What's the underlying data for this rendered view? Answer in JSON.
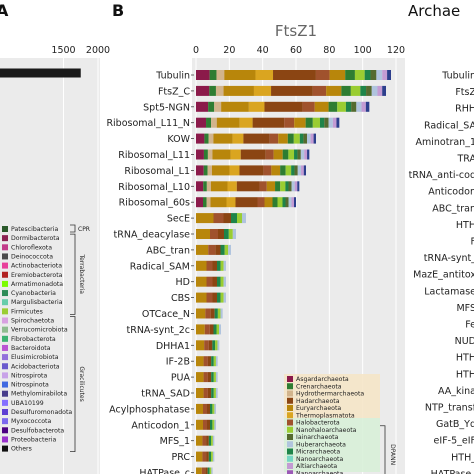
{
  "chart_data": [
    {
      "panel": "A",
      "type": "bar",
      "orientation": "horizontal",
      "x_ticks": [
        1500,
        2000
      ],
      "xlim": [
        0,
        2000
      ],
      "bars": [
        {
          "segments": [
            {
              "value": 240,
              "color": "#b36be0"
            },
            {
              "value": 110,
              "color": "#8a2be2"
            },
            {
              "value": 1400,
              "color": "#1a1a1a"
            }
          ]
        },
        {
          "segments": [
            {
              "value": 60,
              "color": "#b36be0"
            },
            {
              "value": 400,
              "color": "#4b2fd6"
            }
          ]
        },
        {
          "segments": [
            {
              "value": 70,
              "color": "#2a2a2a"
            }
          ]
        },
        {
          "segments": [
            {
              "value": 55,
              "color": "#2a2a2a"
            }
          ]
        },
        {
          "segments": [
            {
              "value": 40,
              "color": "#2a2a2a"
            }
          ]
        }
      ],
      "legend": {
        "items": [
          {
            "name": "Patescibacteria",
            "color": "#2b5a2b"
          },
          {
            "name": "Dormibacterota",
            "color": "#8b2252"
          },
          {
            "name": "Chloroflexota",
            "color": "#c23b8a"
          },
          {
            "name": "Deinococcota",
            "color": "#4a4a4a"
          },
          {
            "name": "Actinobacteriota",
            "color": "#e8409a"
          },
          {
            "name": "Eremiobacterota",
            "color": "#b22222"
          },
          {
            "name": "Armatimonadota",
            "color": "#7cfc00"
          },
          {
            "name": "Cyanobacteria",
            "color": "#2e8b57"
          },
          {
            "name": "Margulisbacteria",
            "color": "#66cdaa"
          },
          {
            "name": "Firmicutes",
            "color": "#9acd32"
          },
          {
            "name": "Spirochaetota",
            "color": "#d8a0e0"
          },
          {
            "name": "Verrucomicrobiota",
            "color": "#8fbc8f"
          },
          {
            "name": "Fibrobacterota",
            "color": "#3cb371"
          },
          {
            "name": "Bacteroidota",
            "color": "#ba55d3"
          },
          {
            "name": "Elusimicrobiota",
            "color": "#9370db"
          },
          {
            "name": "Acidobacteriota",
            "color": "#6a5acd"
          },
          {
            "name": "Nitrospirota",
            "color": "#c8a2e8"
          },
          {
            "name": "Nitrospinota",
            "color": "#4169e1"
          },
          {
            "name": "Methylomirabilota",
            "color": "#483d8b"
          },
          {
            "name": "UBA10199",
            "color": "#8470ff"
          },
          {
            "name": "Desulfuromonadota",
            "color": "#5d3fd3"
          },
          {
            "name": "Myxococcota",
            "color": "#7b68ee"
          },
          {
            "name": "Desulfobacterota",
            "color": "#4b0082"
          },
          {
            "name": "Proteobacteria",
            "color": "#9932cc"
          },
          {
            "name": "Others",
            "color": "#111111"
          }
        ],
        "groups": [
          "CPR",
          "Terrabacteria",
          "Gracilicutes"
        ]
      }
    },
    {
      "panel": "B",
      "type": "bar",
      "orientation": "horizontal",
      "title": "FtsZ1",
      "x_ticks": [
        0,
        20,
        40,
        60,
        80,
        100,
        120
      ],
      "xlim": [
        0,
        120
      ],
      "categories": [
        "Tubulin",
        "FtsZ_C",
        "Spt5-NGN",
        "Ribosomal_L11_N",
        "KOW",
        "Ribosomal_L11",
        "Ribosomal_L1",
        "Ribosomal_L10",
        "Ribosomal_60s",
        "SecE",
        "tRNA_deacylase",
        "ABC_tran",
        "Radical_SAM",
        "HD",
        "CBS",
        "OTCace_N",
        "tRNA-synt_2c",
        "DHHA1",
        "IF-2B",
        "PUA",
        "tRNA_SAD",
        "Acylphosphatase",
        "Anticodon_1",
        "MFS_1",
        "PRC",
        "HATPase_c"
      ],
      "totals": [
        117,
        114,
        104,
        86,
        72,
        68,
        66,
        62,
        60,
        30,
        24,
        21,
        18,
        18,
        18,
        16,
        15,
        14,
        13,
        13,
        13,
        12,
        12,
        11,
        11,
        10
      ],
      "legend": {
        "items": [
          {
            "name": "Asgardarchaeota",
            "color": "#8b1a4a"
          },
          {
            "name": "Crenarchaeota",
            "color": "#2e7d32"
          },
          {
            "name": "Hydrothermarchaeota",
            "color": "#d2b48c"
          },
          {
            "name": "Hadarchaeota",
            "color": "#8b4513"
          },
          {
            "name": "Euryarchaeota",
            "color": "#b8860b"
          },
          {
            "name": "Thermoplasmatota",
            "color": "#daa520"
          },
          {
            "name": "Halobacterota",
            "color": "#a0522d"
          },
          {
            "name": "Nanohaloarchaeota",
            "color": "#9acd32"
          },
          {
            "name": "Iainarchaeota",
            "color": "#556b2f"
          },
          {
            "name": "Huberarchaeota",
            "color": "#b0c4de"
          },
          {
            "name": "Micrarchaeota",
            "color": "#1e8449"
          },
          {
            "name": "Nanoarchaeota",
            "color": "#76d7c4"
          },
          {
            "name": "Altiarchaeota",
            "color": "#c39bd3"
          },
          {
            "name": "Nanoarchaeota",
            "color": "#9b59b6"
          },
          {
            "name": "UAP2",
            "color": "#2c3e8c"
          }
        ],
        "groups": [
          "DPANN"
        ]
      }
    },
    {
      "panel": "C",
      "type": "bar",
      "orientation": "horizontal",
      "title": "Archae",
      "categories": [
        "Tubulin",
        "FtsZ",
        "RHH",
        "Radical_SA",
        "Aminotran_1",
        "TRA",
        "tRNA_anti-cod",
        "Anticodon",
        "ABC_tran",
        "HTH",
        "F",
        "tRNA-synt_",
        "MazE_antitox",
        "Lactamase",
        "MFS",
        "Fe",
        "NUD",
        "HTH",
        "HTH",
        "AA_kina",
        "NTP_transf",
        "GatB_Yq",
        "eIF-5_eIF",
        "HTH_",
        "HATPase_"
      ]
    }
  ]
}
